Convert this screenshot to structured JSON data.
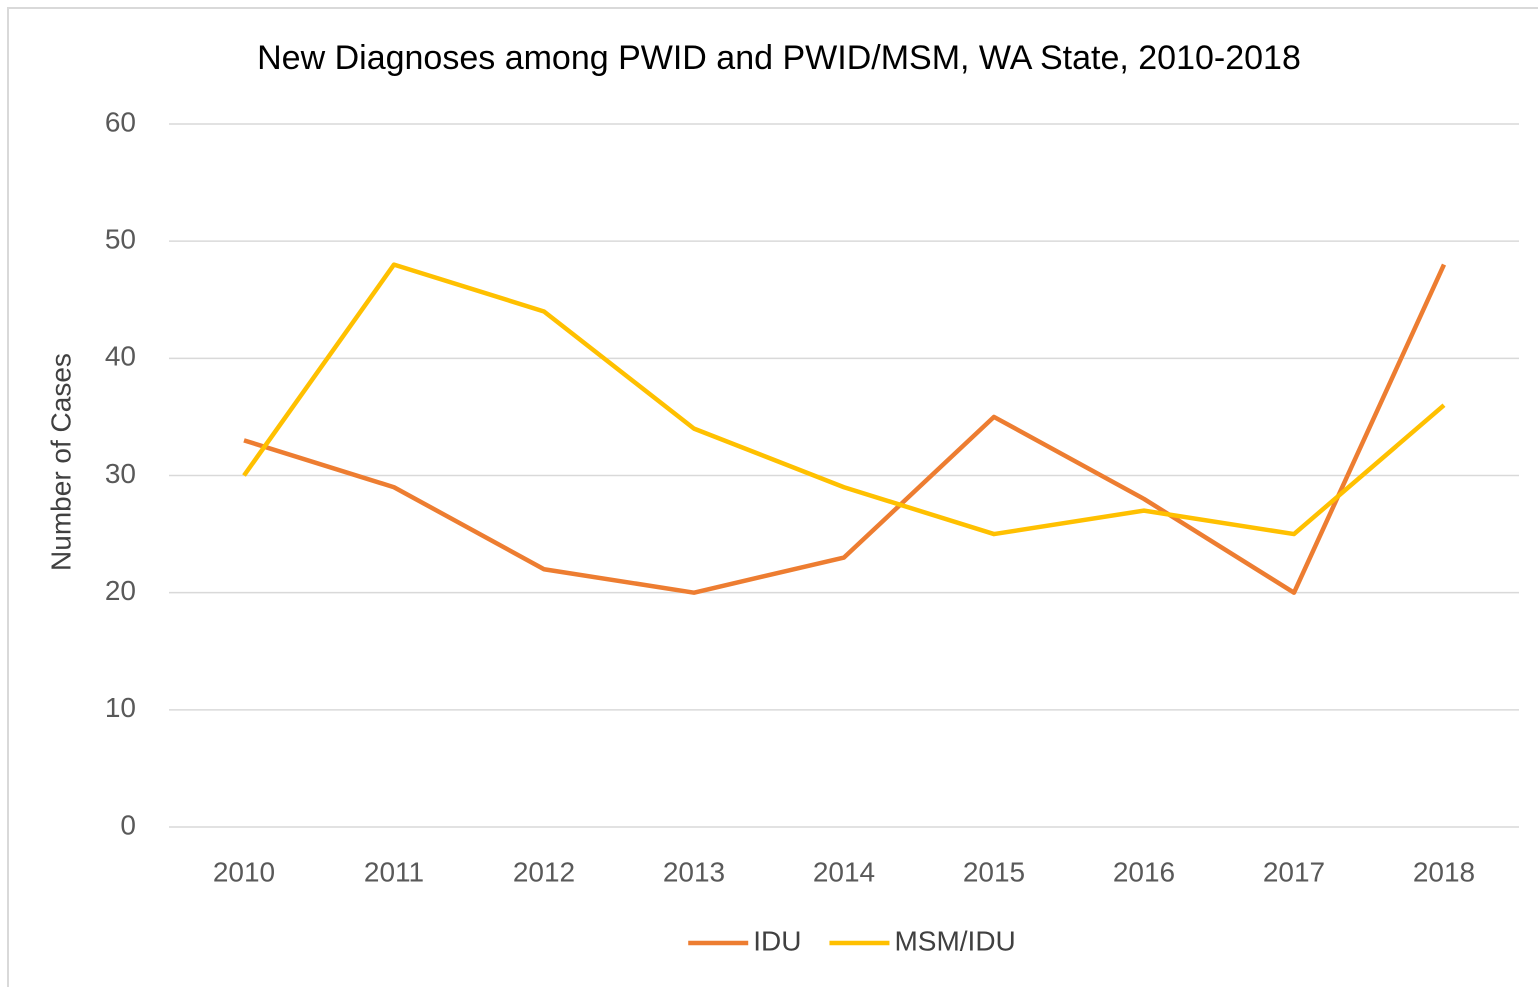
{
  "chart_data": {
    "type": "line",
    "title": "New Diagnoses among PWID and PWID/MSM, WA State, 2010-2018",
    "y_label": "Number of Cases",
    "categories": [
      "2010",
      "2011",
      "2012",
      "2013",
      "2014",
      "2015",
      "2016",
      "2017",
      "2018"
    ],
    "series": [
      {
        "name": "IDU",
        "color": "#ed7d31",
        "values": [
          33,
          29,
          22,
          20,
          23,
          35,
          28,
          20,
          48
        ]
      },
      {
        "name": "MSM/IDU",
        "color": "#ffc000",
        "values": [
          30,
          48,
          44,
          34,
          29,
          25,
          27,
          25,
          36
        ]
      }
    ],
    "ylim": [
      0,
      60
    ],
    "yticks": [
      0,
      10,
      20,
      30,
      40,
      50,
      60
    ],
    "grid": true,
    "legend": "bottom"
  }
}
